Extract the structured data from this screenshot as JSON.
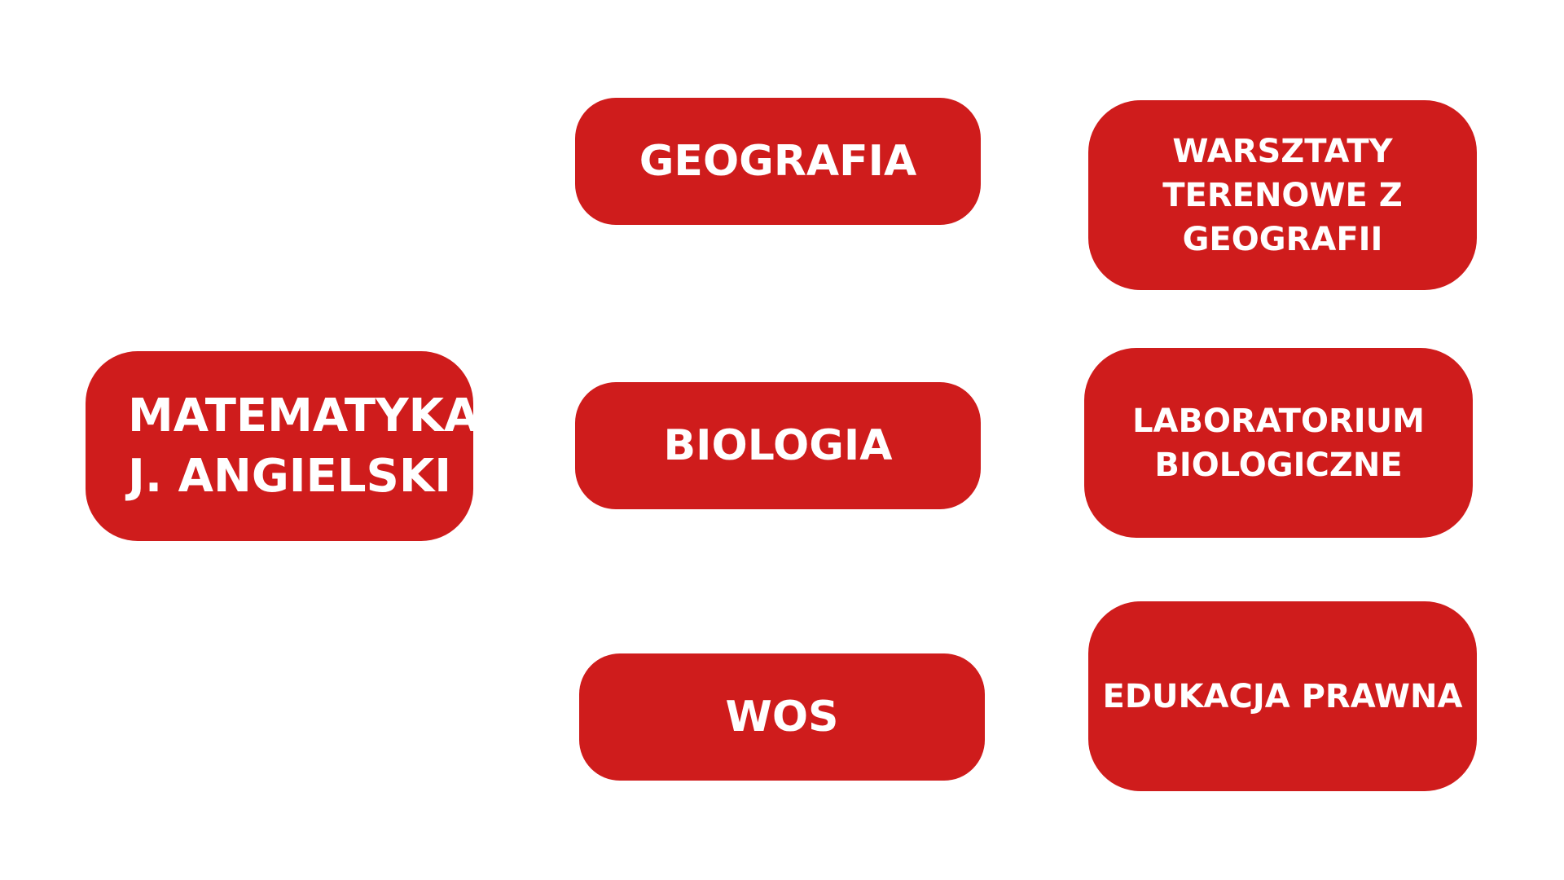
{
  "colors": {
    "box_fill": "#cf1c1c",
    "text": "#ffffff",
    "background": "#ffffff"
  },
  "core": {
    "label": "MATEMATYKA\nJ. ANGIELSKI"
  },
  "subjects": [
    {
      "label": "GEOGRAFIA"
    },
    {
      "label": "BIOLOGIA"
    },
    {
      "label": "WOS"
    }
  ],
  "activities": [
    {
      "label": "WARSZTATY\nTERENOWE Z\nGEOGRAFII"
    },
    {
      "label": "LABORATORIUM\nBIOLOGICZNE"
    },
    {
      "label": "EDUKACJA PRAWNA"
    }
  ]
}
